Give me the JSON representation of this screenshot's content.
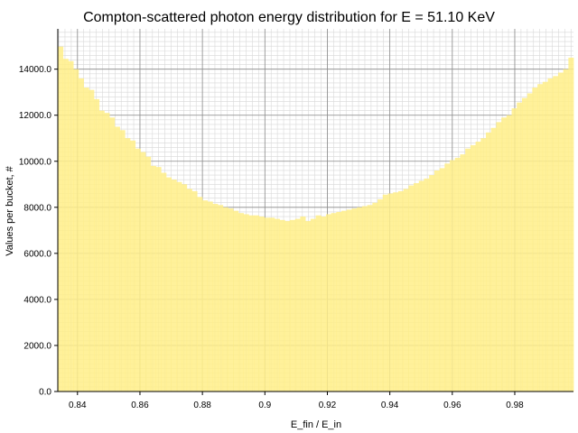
{
  "chart_data": {
    "type": "bar",
    "title": "Compton-scattered photon energy distribution for E = 51.10 KeV",
    "xlabel": "E_fin / E_in",
    "ylabel": "Values per bucket, #",
    "xlim": [
      0.8337,
      0.9988
    ],
    "ylim": [
      0,
      15750
    ],
    "xticks": [
      0.84,
      0.86,
      0.88,
      0.9,
      0.92,
      0.94,
      0.96,
      0.98
    ],
    "xtick_labels": [
      "0.84",
      "0.86",
      "0.88",
      "0.9",
      "0.92",
      "0.94",
      "0.96",
      "0.98"
    ],
    "yticks": [
      0,
      2000,
      4000,
      6000,
      8000,
      10000,
      12000,
      14000
    ],
    "ytick_labels": [
      "0.0",
      "2000.0",
      "4000.0",
      "6000.0",
      "8000.0",
      "10000.0",
      "12000.0",
      "14000.0"
    ],
    "grid": true,
    "minor_grid": true,
    "bar_color": "#ffee88",
    "bins": {
      "start": 0.8337,
      "width": 0.0016512,
      "values": [
        14980,
        14450,
        14350,
        14000,
        13600,
        13200,
        13100,
        12700,
        12200,
        12100,
        11900,
        11500,
        11350,
        11000,
        10900,
        10550,
        10400,
        10200,
        9800,
        9750,
        9500,
        9300,
        9200,
        9100,
        9000,
        8800,
        8700,
        8450,
        8300,
        8250,
        8150,
        8100,
        8000,
        7950,
        7850,
        7750,
        7700,
        7650,
        7650,
        7600,
        7550,
        7550,
        7500,
        7450,
        7400,
        7450,
        7500,
        7600,
        7400,
        7500,
        7650,
        7600,
        7700,
        7750,
        7800,
        7850,
        7900,
        7950,
        8000,
        8050,
        8100,
        8200,
        8350,
        8550,
        8600,
        8650,
        8700,
        8800,
        8950,
        9050,
        9150,
        9250,
        9400,
        9600,
        9700,
        9900,
        10050,
        10150,
        10300,
        10550,
        10700,
        10850,
        11000,
        11250,
        11450,
        11700,
        11900,
        12000,
        12300,
        12550,
        12750,
        12950,
        13200,
        13350,
        13450,
        13600,
        13700,
        13850,
        14000,
        14500
      ]
    }
  }
}
